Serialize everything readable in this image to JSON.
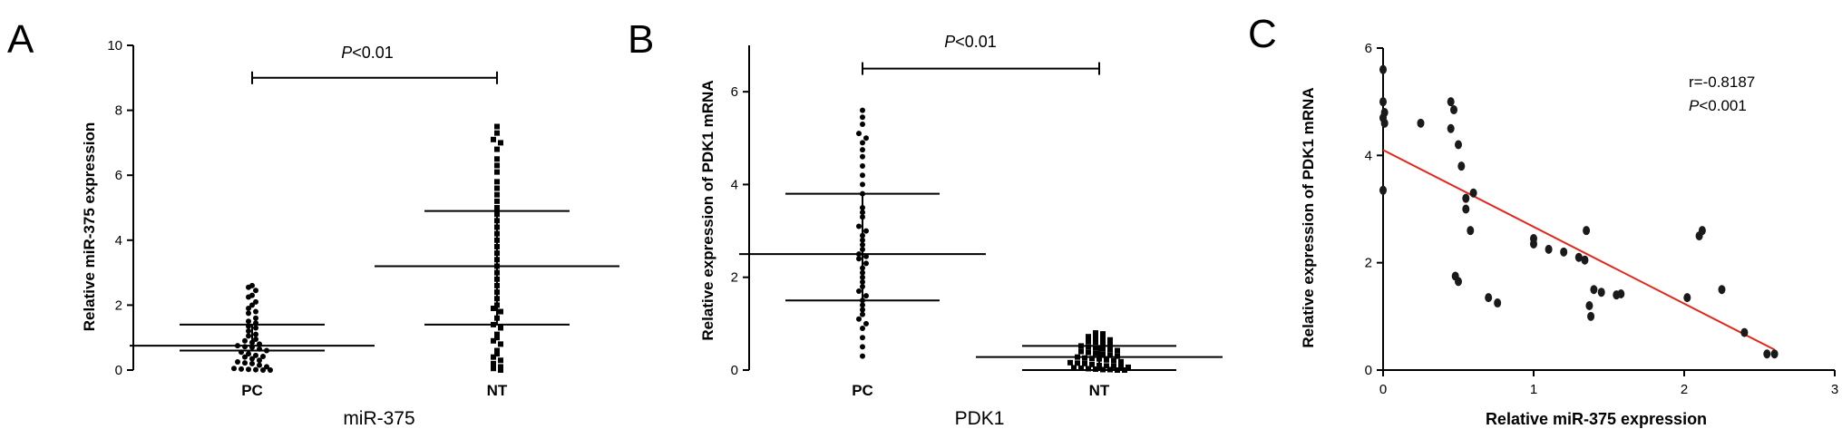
{
  "chart_data": [
    {
      "panel": "A",
      "type": "scatter",
      "categories": [
        "PC",
        "NT"
      ],
      "xlabel": "miR-375",
      "ylabel": "Relative miR-375 expression",
      "ylim": [
        0,
        10
      ],
      "yticks": [
        0,
        2,
        4,
        6,
        8,
        10
      ],
      "significance": {
        "p": "P",
        "rest": "<0.01"
      },
      "series": [
        {
          "category": "PC",
          "marker": "circle",
          "mean": 0.75,
          "sd_low": 0.6,
          "sd_high": 1.4,
          "values": [
            2.6,
            2.55,
            2.45,
            2.3,
            2.25,
            2.1,
            2.0,
            1.9,
            1.8,
            1.75,
            1.6,
            1.5,
            1.45,
            1.35,
            1.3,
            1.2,
            1.1,
            1.05,
            0.95,
            0.9,
            0.85,
            0.8,
            0.75,
            0.72,
            0.7,
            0.65,
            0.6,
            0.55,
            0.5,
            0.45,
            0.42,
            0.4,
            0.35,
            0.3,
            0.25,
            0.22,
            0.2,
            0.15,
            0.1,
            0.05,
            0.03,
            0.02,
            0.01,
            0.0,
            0.0
          ]
        },
        {
          "category": "NT",
          "marker": "square",
          "mean": 3.2,
          "sd_low": 1.4,
          "sd_high": 4.9,
          "values": [
            7.5,
            7.3,
            7.1,
            7.0,
            6.8,
            6.5,
            6.3,
            6.1,
            5.8,
            5.6,
            5.4,
            5.2,
            5.0,
            4.8,
            4.6,
            4.4,
            4.2,
            4.0,
            3.8,
            3.6,
            3.4,
            3.2,
            3.0,
            2.8,
            2.6,
            2.4,
            2.2,
            2.0,
            1.9,
            1.8,
            1.6,
            1.4,
            1.3,
            1.1,
            1.0,
            0.9,
            0.8,
            0.6,
            0.5,
            0.4,
            0.3,
            0.2,
            0.1,
            0.05,
            0.0
          ]
        }
      ]
    },
    {
      "panel": "B",
      "type": "scatter",
      "categories": [
        "PC",
        "NT"
      ],
      "xlabel": "PDK1",
      "ylabel": "Relative expression of PDK1 mRNA",
      "ylim": [
        0,
        7
      ],
      "yticks": [
        0,
        2,
        4,
        6
      ],
      "significance": {
        "p": "P",
        "rest": "<0.01"
      },
      "series": [
        {
          "category": "PC",
          "marker": "circle",
          "mean": 2.5,
          "sd_low": 1.5,
          "sd_high": 3.8,
          "values": [
            5.6,
            5.45,
            5.3,
            5.1,
            5.0,
            4.9,
            4.75,
            4.6,
            4.4,
            4.2,
            4.0,
            3.8,
            3.5,
            3.4,
            3.3,
            3.1,
            3.0,
            2.9,
            2.8,
            2.7,
            2.6,
            2.5,
            2.45,
            2.4,
            2.3,
            2.2,
            2.1,
            2.0,
            1.9,
            1.8,
            1.7,
            1.6,
            1.5,
            1.4,
            1.3,
            1.2,
            1.1,
            1.0,
            0.9,
            0.7,
            0.5,
            0.3
          ]
        },
        {
          "category": "NT",
          "marker": "square",
          "mean": 0.28,
          "sd_low": 0.0,
          "sd_high": 0.52,
          "values": [
            0.8,
            0.78,
            0.72,
            0.7,
            0.68,
            0.65,
            0.62,
            0.6,
            0.58,
            0.55,
            0.52,
            0.5,
            0.48,
            0.46,
            0.44,
            0.42,
            0.4,
            0.38,
            0.36,
            0.34,
            0.32,
            0.3,
            0.28,
            0.26,
            0.25,
            0.24,
            0.22,
            0.2,
            0.18,
            0.16,
            0.15,
            0.14,
            0.12,
            0.1,
            0.09,
            0.08,
            0.07,
            0.06,
            0.05,
            0.04,
            0.03,
            0.02,
            0.01,
            0.01,
            0.0,
            0.0
          ]
        }
      ]
    },
    {
      "panel": "C",
      "type": "scatter",
      "xlabel": "Relative miR-375 expression",
      "ylabel": "Relative expression of PDK1 mRNA",
      "xlim": [
        0,
        3
      ],
      "ylim": [
        0,
        6
      ],
      "xticks": [
        0,
        1,
        2,
        3
      ],
      "yticks": [
        0,
        2,
        4,
        6
      ],
      "stats": {
        "r": "r=-0.8187",
        "p": "P",
        "p_rest": "<0.001"
      },
      "fit_line": {
        "x": [
          0,
          2.6
        ],
        "y": [
          4.1,
          0.38
        ],
        "color": "#e32619"
      },
      "points": [
        {
          "x": 0.0,
          "y": 5.6
        },
        {
          "x": 0.0,
          "y": 5.0
        },
        {
          "x": 0.01,
          "y": 4.8
        },
        {
          "x": 0.0,
          "y": 4.7
        },
        {
          "x": 0.01,
          "y": 4.6
        },
        {
          "x": 0.0,
          "y": 3.35
        },
        {
          "x": 0.25,
          "y": 4.6
        },
        {
          "x": 0.45,
          "y": 5.0
        },
        {
          "x": 0.47,
          "y": 4.85
        },
        {
          "x": 0.45,
          "y": 4.5
        },
        {
          "x": 0.5,
          "y": 4.2
        },
        {
          "x": 0.52,
          "y": 3.8
        },
        {
          "x": 0.55,
          "y": 3.2
        },
        {
          "x": 0.55,
          "y": 3.0
        },
        {
          "x": 0.58,
          "y": 2.6
        },
        {
          "x": 0.6,
          "y": 3.3
        },
        {
          "x": 0.48,
          "y": 1.75
        },
        {
          "x": 0.5,
          "y": 1.65
        },
        {
          "x": 0.7,
          "y": 1.35
        },
        {
          "x": 0.76,
          "y": 1.25
        },
        {
          "x": 1.0,
          "y": 2.45
        },
        {
          "x": 1.0,
          "y": 2.35
        },
        {
          "x": 1.1,
          "y": 2.25
        },
        {
          "x": 1.2,
          "y": 2.2
        },
        {
          "x": 1.3,
          "y": 2.1
        },
        {
          "x": 1.34,
          "y": 2.05
        },
        {
          "x": 1.35,
          "y": 2.6
        },
        {
          "x": 1.37,
          "y": 1.2
        },
        {
          "x": 1.38,
          "y": 1.0
        },
        {
          "x": 1.4,
          "y": 1.5
        },
        {
          "x": 1.45,
          "y": 1.45
        },
        {
          "x": 1.55,
          "y": 1.4
        },
        {
          "x": 1.58,
          "y": 1.42
        },
        {
          "x": 2.02,
          "y": 1.35
        },
        {
          "x": 2.1,
          "y": 2.5
        },
        {
          "x": 2.12,
          "y": 2.6
        },
        {
          "x": 2.25,
          "y": 1.5
        },
        {
          "x": 2.4,
          "y": 0.7
        },
        {
          "x": 2.55,
          "y": 0.3
        },
        {
          "x": 2.6,
          "y": 0.3
        }
      ]
    }
  ]
}
